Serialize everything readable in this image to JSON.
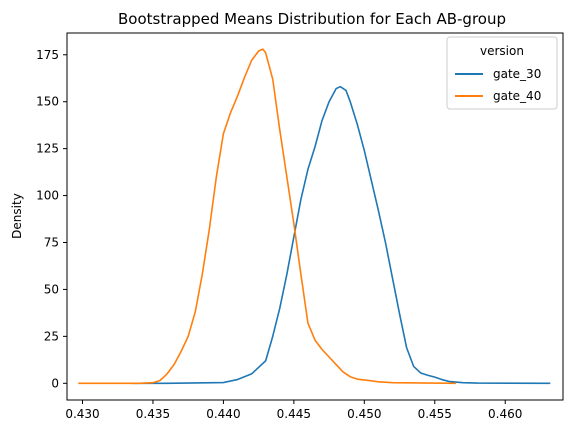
{
  "chart_data": {
    "type": "line",
    "title": "Bootstrapped Means Distribution for Each AB-group",
    "xlabel": "",
    "ylabel": "Density",
    "xlim": [
      0.4289,
      0.4641
    ],
    "ylim": [
      -8.9,
      186.6
    ],
    "x_ticks": [
      "0.430",
      "0.435",
      "0.440",
      "0.445",
      "0.450",
      "0.455",
      "0.460"
    ],
    "y_ticks": [
      "0",
      "25",
      "50",
      "75",
      "100",
      "125",
      "150",
      "175"
    ],
    "grid": false,
    "legend": {
      "title": "version",
      "placement": "top-right"
    },
    "series": [
      {
        "name": "gate_30",
        "color": "#1f77b4",
        "points": [
          [
            0.4335,
            0
          ],
          [
            0.436,
            0
          ],
          [
            0.438,
            0.2
          ],
          [
            0.44,
            0.4
          ],
          [
            0.441,
            2
          ],
          [
            0.442,
            5
          ],
          [
            0.443,
            12
          ],
          [
            0.4435,
            25
          ],
          [
            0.444,
            40
          ],
          [
            0.4445,
            58
          ],
          [
            0.445,
            78
          ],
          [
            0.4455,
            98
          ],
          [
            0.446,
            114
          ],
          [
            0.4465,
            126
          ],
          [
            0.447,
            140
          ],
          [
            0.4475,
            150
          ],
          [
            0.448,
            157
          ],
          [
            0.4483,
            158
          ],
          [
            0.4487,
            156
          ],
          [
            0.449,
            150
          ],
          [
            0.4495,
            138
          ],
          [
            0.45,
            124
          ],
          [
            0.4505,
            108
          ],
          [
            0.451,
            92
          ],
          [
            0.4515,
            75
          ],
          [
            0.452,
            56
          ],
          [
            0.4525,
            37
          ],
          [
            0.453,
            19
          ],
          [
            0.4535,
            9
          ],
          [
            0.454,
            5.5
          ],
          [
            0.4545,
            4.3
          ],
          [
            0.455,
            3.3
          ],
          [
            0.4555,
            2.0
          ],
          [
            0.456,
            1.0
          ],
          [
            0.457,
            0.3
          ],
          [
            0.458,
            0.1
          ],
          [
            0.4632,
            0
          ]
        ]
      },
      {
        "name": "gate_40",
        "color": "#ff7f0e",
        "points": [
          [
            0.4297,
            0
          ],
          [
            0.434,
            0
          ],
          [
            0.435,
            0.3
          ],
          [
            0.4355,
            1.5
          ],
          [
            0.436,
            5
          ],
          [
            0.4365,
            10
          ],
          [
            0.437,
            17
          ],
          [
            0.4375,
            25
          ],
          [
            0.438,
            38
          ],
          [
            0.4385,
            58
          ],
          [
            0.439,
            82
          ],
          [
            0.4395,
            110
          ],
          [
            0.44,
            133
          ],
          [
            0.4405,
            144
          ],
          [
            0.441,
            153
          ],
          [
            0.4415,
            163
          ],
          [
            0.442,
            172
          ],
          [
            0.4425,
            177
          ],
          [
            0.4428,
            178
          ],
          [
            0.443,
            176
          ],
          [
            0.4435,
            162
          ],
          [
            0.444,
            135
          ],
          [
            0.4445,
            110
          ],
          [
            0.445,
            85
          ],
          [
            0.4455,
            58
          ],
          [
            0.446,
            32
          ],
          [
            0.4465,
            23
          ],
          [
            0.447,
            18
          ],
          [
            0.4475,
            14
          ],
          [
            0.448,
            10
          ],
          [
            0.4485,
            6
          ],
          [
            0.449,
            3.5
          ],
          [
            0.4495,
            2.2
          ],
          [
            0.45,
            1.8
          ],
          [
            0.451,
            0.8
          ],
          [
            0.452,
            0.3
          ],
          [
            0.4565,
            0
          ]
        ]
      }
    ]
  }
}
